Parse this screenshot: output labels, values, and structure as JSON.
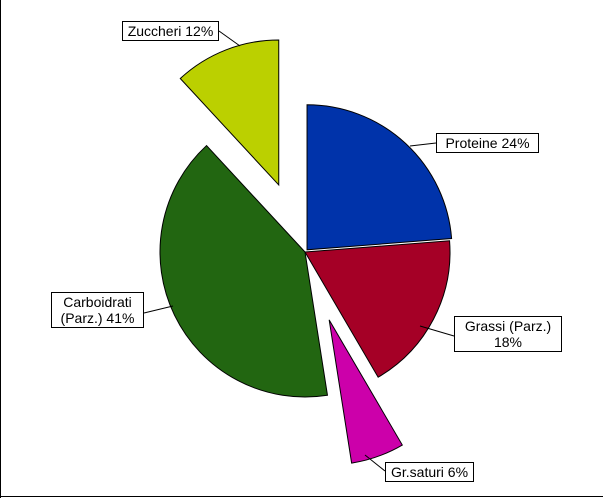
{
  "chart_data": {
    "type": "pie",
    "categories": [
      "Proteine",
      "Grassi (Parz.)",
      "Gr.saturi",
      "Carboidrati (Parz.)",
      "Zuccheri"
    ],
    "values": [
      24,
      18,
      6,
      41,
      12
    ],
    "value_labels": [
      "24%",
      "18%",
      "6%",
      "41%",
      "12%"
    ],
    "colors": [
      "#0033aa",
      "#a50026",
      "#cc00aa",
      "#226611",
      "#bbd000"
    ]
  }
}
